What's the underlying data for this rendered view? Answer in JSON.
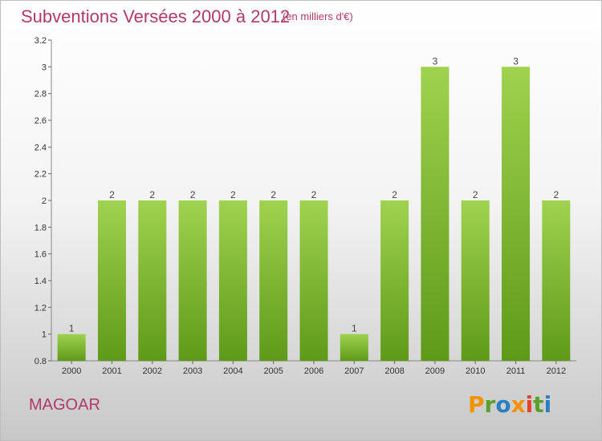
{
  "title": "Subventions Versées 2000 à 2012",
  "subtitle": "(en milliers d'€)",
  "commune": "MAGOAR",
  "logo": {
    "letters": [
      "P",
      "r",
      "o",
      "x",
      "i",
      "t",
      "i"
    ],
    "colors": [
      "#f39200",
      "#5aa02c",
      "#2a7fc1",
      "#f39200",
      "#e8412c",
      "#5aa02c",
      "#2a7fc1"
    ]
  },
  "colors": {
    "accent": "#b0386a",
    "bar_top": "#9fd24f",
    "bar_bottom": "#5e9a18"
  },
  "chart_data": {
    "type": "bar",
    "title": "Subventions Versées 2000 à 2012",
    "categories": [
      "2000",
      "2001",
      "2002",
      "2003",
      "2004",
      "2005",
      "2006",
      "2007",
      "2008",
      "2009",
      "2010",
      "2011",
      "2012"
    ],
    "values": [
      1,
      2,
      2,
      2,
      2,
      2,
      2,
      1,
      2,
      3,
      2,
      3,
      2
    ],
    "data_labels": [
      "1",
      "2",
      "2",
      "2",
      "2",
      "2",
      "2",
      "1",
      "2",
      "3",
      "2",
      "3",
      "2"
    ],
    "ylim": [
      0.8,
      3.2
    ],
    "yticks": [
      0.8,
      1,
      1.2,
      1.4,
      1.6,
      1.8,
      2,
      2.2,
      2.4,
      2.6,
      2.8,
      3,
      3.2
    ],
    "ytick_labels": [
      "0.8",
      "1",
      "1.2",
      "1.4",
      "1.6",
      "1.8",
      "2",
      "2.2",
      "2.4",
      "2.6",
      "2.8",
      "3",
      "3.2"
    ],
    "grid": false
  }
}
